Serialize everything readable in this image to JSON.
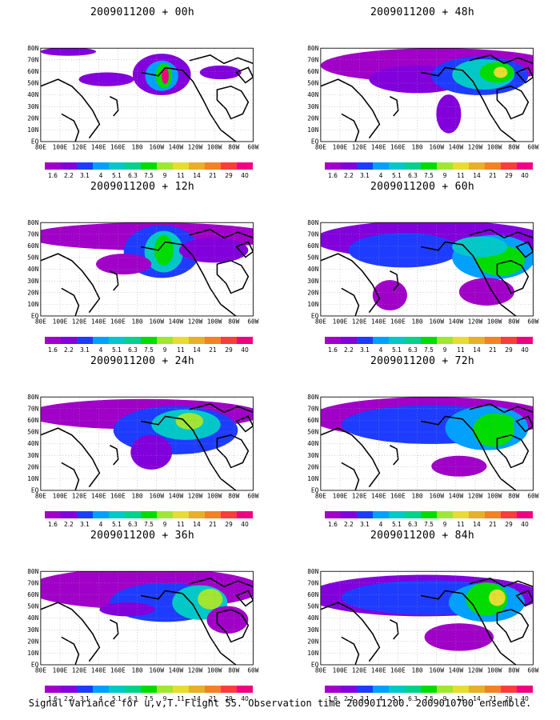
{
  "figure": {
    "footer": "Signal Variance for u,v,T. Flight 55. Observation time 2009011200. 2009010700 ensemble."
  },
  "map_axes": {
    "lon_labels": [
      "80E",
      "100E",
      "120E",
      "140E",
      "160E",
      "180",
      "160W",
      "140W",
      "120W",
      "100W",
      "80W",
      "60W"
    ],
    "lat_labels": [
      "EQ",
      "10N",
      "20N",
      "30N",
      "40N",
      "50N",
      "60N",
      "70N",
      "80N"
    ]
  },
  "colorbar": {
    "labels": [
      "1.6",
      "2.2",
      "3.1",
      "4",
      "5.1",
      "6.3",
      "7.5",
      "9",
      "11",
      "14",
      "21",
      "29",
      "40"
    ],
    "colors": [
      "#a000c8",
      "#8200dc",
      "#1e3cff",
      "#00a0ff",
      "#00c8c8",
      "#00d28c",
      "#00dc00",
      "#a0e632",
      "#e6dc32",
      "#e6af2d",
      "#f08228",
      "#fa3c3c",
      "#f00082"
    ]
  },
  "panels": [
    {
      "title": "2009011200 + 00h"
    },
    {
      "title": "2009011200 + 48h"
    },
    {
      "title": "2009011200 + 12h"
    },
    {
      "title": "2009011200 + 60h"
    },
    {
      "title": "2009011200 + 24h"
    },
    {
      "title": "2009011200 + 72h"
    },
    {
      "title": "2009011200 + 36h"
    },
    {
      "title": "2009011200 + 84h"
    }
  ]
}
